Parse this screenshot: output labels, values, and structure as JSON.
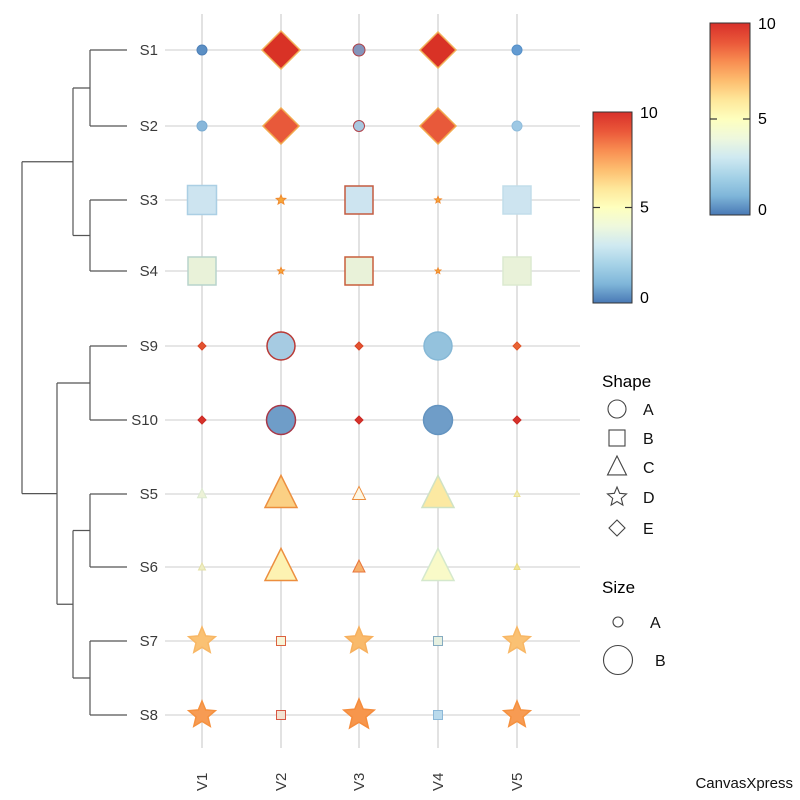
{
  "footer": {
    "brand": "CanvasXpress"
  },
  "chart_data": {
    "type": "scatter",
    "subtype": "clustered-dot-matrix",
    "title": "",
    "columns": [
      "V1",
      "V2",
      "V3",
      "V4",
      "V5"
    ],
    "rows": [
      "S1",
      "S2",
      "S3",
      "S4",
      "S9",
      "S10",
      "S5",
      "S6",
      "S7",
      "S8"
    ],
    "colormap": {
      "name": "RdYlBu-reversed",
      "min": 0,
      "max": 10,
      "stops": [
        "#d7302a",
        "#ea5739",
        "#f88d51",
        "#fdbd6f",
        "#fee79a",
        "#feffbe",
        "#eef8dd",
        "#cfe9f1",
        "#a5d2e7",
        "#7fb6d9",
        "#4979b5"
      ]
    },
    "dendrogram": {
      "orientation": "left",
      "newick": "(((S1,S2),(S3,S4)),((S9,S10),((S5,S6),(S7,S8))));"
    },
    "cells": [
      [
        {
          "shape": "circle",
          "d": 10,
          "fill": "#5b8fc4",
          "stroke": "#4d80b8"
        },
        {
          "shape": "diamond",
          "d": 38,
          "fill": "#d93226",
          "stroke": "#f2b25a"
        },
        {
          "shape": "circle",
          "d": 12,
          "fill": "#8494bb",
          "stroke": "#ae3f45"
        },
        {
          "shape": "diamond",
          "d": 36,
          "fill": "#d93226",
          "stroke": "#f2b25a"
        },
        {
          "shape": "circle",
          "d": 10,
          "fill": "#639bd2",
          "stroke": "#5590c8"
        }
      ],
      [
        {
          "shape": "circle",
          "d": 10,
          "fill": "#88b7da",
          "stroke": "#79abd2"
        },
        {
          "shape": "diamond",
          "d": 36,
          "fill": "#e8593a",
          "stroke": "#f2a94e"
        },
        {
          "shape": "circle",
          "d": 11,
          "fill": "#a8c8e0",
          "stroke": "#b04048"
        },
        {
          "shape": "diamond",
          "d": 36,
          "fill": "#e8593a",
          "stroke": "#f2a94e"
        },
        {
          "shape": "circle",
          "d": 10,
          "fill": "#9dc8e4",
          "stroke": "#8fbcdc"
        }
      ],
      [
        {
          "shape": "square",
          "d": 29,
          "fill": "#cde4f0",
          "stroke": "#abcfe4"
        },
        {
          "shape": "star",
          "d": 10,
          "fill": "#f6a63a",
          "stroke": "#f08a2e"
        },
        {
          "shape": "square",
          "d": 28,
          "fill": "#cde4f0",
          "stroke": "#c35c41"
        },
        {
          "shape": "star",
          "d": 7,
          "fill": "#f6a63a",
          "stroke": "#f08a2e"
        },
        {
          "shape": "square",
          "d": 28,
          "fill": "#cde4f0",
          "stroke": "#c2ddea"
        }
      ],
      [
        {
          "shape": "square",
          "d": 28,
          "fill": "#e9f2d9",
          "stroke": "#b8d4cc"
        },
        {
          "shape": "star",
          "d": 7,
          "fill": "#f6a63a",
          "stroke": "#f08a2e"
        },
        {
          "shape": "square",
          "d": 28,
          "fill": "#e9f2d9",
          "stroke": "#c85f3c"
        },
        {
          "shape": "star",
          "d": 6,
          "fill": "#f6a63a",
          "stroke": "#f08a2e"
        },
        {
          "shape": "square",
          "d": 28,
          "fill": "#e9f2d9",
          "stroke": "#dcead0"
        }
      ],
      [
        {
          "shape": "diamond",
          "d": 8,
          "fill": "#e25330",
          "stroke": "#d94427"
        },
        {
          "shape": "circle",
          "d": 28,
          "fill": "#a6cbe2",
          "stroke": "#b93a36"
        },
        {
          "shape": "diamond",
          "d": 8,
          "fill": "#e25330",
          "stroke": "#d94427"
        },
        {
          "shape": "circle",
          "d": 28,
          "fill": "#94c2dd",
          "stroke": "#86b8d6"
        },
        {
          "shape": "diamond",
          "d": 8,
          "fill": "#e86434",
          "stroke": "#e05428"
        }
      ],
      [
        {
          "shape": "diamond",
          "d": 8,
          "fill": "#d7312a",
          "stroke": "#c92a24"
        },
        {
          "shape": "circle",
          "d": 29,
          "fill": "#6f9dc8",
          "stroke": "#a83848"
        },
        {
          "shape": "diamond",
          "d": 8,
          "fill": "#d7312a",
          "stroke": "#c92a24"
        },
        {
          "shape": "circle",
          "d": 29,
          "fill": "#6f9dc8",
          "stroke": "#6494c0"
        },
        {
          "shape": "diamond",
          "d": 8,
          "fill": "#d7312a",
          "stroke": "#c92a24"
        }
      ],
      [
        {
          "shape": "triangle",
          "d": 9,
          "fill": "#edf2d7",
          "stroke": "#dcead0"
        },
        {
          "shape": "triangle",
          "d": 32,
          "fill": "#fbd084",
          "stroke": "#ec8e3e"
        },
        {
          "shape": "triangle",
          "d": 13,
          "fill": "#fdf7e4",
          "stroke": "#ec8e3e"
        },
        {
          "shape": "triangle",
          "d": 32,
          "fill": "#fce9a2",
          "stroke": "#cfe2c4"
        },
        {
          "shape": "triangle",
          "d": 6,
          "fill": "#f4eeb2",
          "stroke": "#ece292"
        }
      ],
      [
        {
          "shape": "triangle",
          "d": 7,
          "fill": "#eeeec2",
          "stroke": "#e4e0a8"
        },
        {
          "shape": "triangle",
          "d": 32,
          "fill": "#fdf2b2",
          "stroke": "#ec8e3e"
        },
        {
          "shape": "triangle",
          "d": 12,
          "fill": "#f6b06c",
          "stroke": "#e8743a"
        },
        {
          "shape": "triangle",
          "d": 32,
          "fill": "#f9fac8",
          "stroke": "#d4e8cc"
        },
        {
          "shape": "triangle",
          "d": 6,
          "fill": "#f2e694",
          "stroke": "#eadc84"
        }
      ],
      [
        {
          "shape": "star",
          "d": 28,
          "fill": "#fac173",
          "stroke": "#f8b765"
        },
        {
          "shape": "square",
          "d": 9,
          "fill": "#f8f5d9",
          "stroke": "#dc6240"
        },
        {
          "shape": "star",
          "d": 28,
          "fill": "#f9ba6b",
          "stroke": "#f7b05e"
        },
        {
          "shape": "square",
          "d": 9,
          "fill": "#e6f0e1",
          "stroke": "#85abc0"
        },
        {
          "shape": "star",
          "d": 28,
          "fill": "#fac173",
          "stroke": "#f8b765"
        }
      ],
      [
        {
          "shape": "star",
          "d": 28,
          "fill": "#f79b53",
          "stroke": "#f5913f"
        },
        {
          "shape": "square",
          "d": 9,
          "fill": "#f2e2d2",
          "stroke": "#d85744"
        },
        {
          "shape": "star",
          "d": 32,
          "fill": "#f7964c",
          "stroke": "#f58c3c"
        },
        {
          "shape": "square",
          "d": 9,
          "fill": "#badaec",
          "stroke": "#8cb8d8"
        },
        {
          "shape": "star",
          "d": 28,
          "fill": "#f79b53",
          "stroke": "#f5913f"
        }
      ]
    ],
    "legends": {
      "colorbars": [
        {
          "tick_labels": [
            "10",
            "5",
            "0"
          ],
          "min": 0,
          "max": 10
        },
        {
          "tick_labels": [
            "10",
            "5",
            "0"
          ],
          "min": 0,
          "max": 10
        }
      ],
      "shape": {
        "title": "Shape",
        "items": [
          {
            "label": "A",
            "shape": "circle"
          },
          {
            "label": "B",
            "shape": "square"
          },
          {
            "label": "C",
            "shape": "triangle"
          },
          {
            "label": "D",
            "shape": "star"
          },
          {
            "label": "E",
            "shape": "diamond"
          }
        ]
      },
      "size": {
        "title": "Size",
        "items": [
          {
            "label": "A",
            "size": "small"
          },
          {
            "label": "B",
            "size": "large"
          }
        ]
      }
    }
  }
}
